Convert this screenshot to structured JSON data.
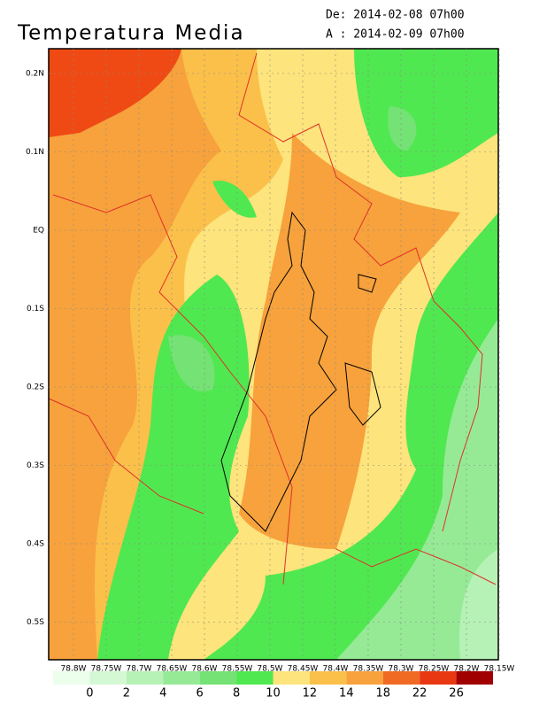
{
  "header": {
    "title": "Temperatura Media",
    "from_label": "De: 2014-02-08 07h00",
    "to_label": "A : 2014-02-09 07h00"
  },
  "map": {
    "lat_ticks": [
      "0.2N",
      "0.1N",
      "EQ",
      "0.1S",
      "0.2S",
      "0.3S",
      "0.4S",
      "0.5S"
    ],
    "lon_ticks": [
      "78.8W",
      "78.75W",
      "78.7W",
      "78.65W",
      "78.6W",
      "78.55W",
      "78.5W",
      "78.45W",
      "78.4W",
      "78.35W",
      "78.3W",
      "78.25W",
      "78.2W",
      "78.15W"
    ]
  },
  "colorbar": {
    "labels": [
      "0",
      "2",
      "4",
      "6",
      "8",
      "10",
      "12",
      "14",
      "18",
      "22",
      "26"
    ],
    "colors": [
      "#ecfeec",
      "#d4f8d4",
      "#b6f2b6",
      "#96ea96",
      "#74e274",
      "#50e850",
      "#fde47c",
      "#fbc04a",
      "#f7a23c",
      "#f06a24",
      "#e83812",
      "#a00000"
    ]
  }
}
